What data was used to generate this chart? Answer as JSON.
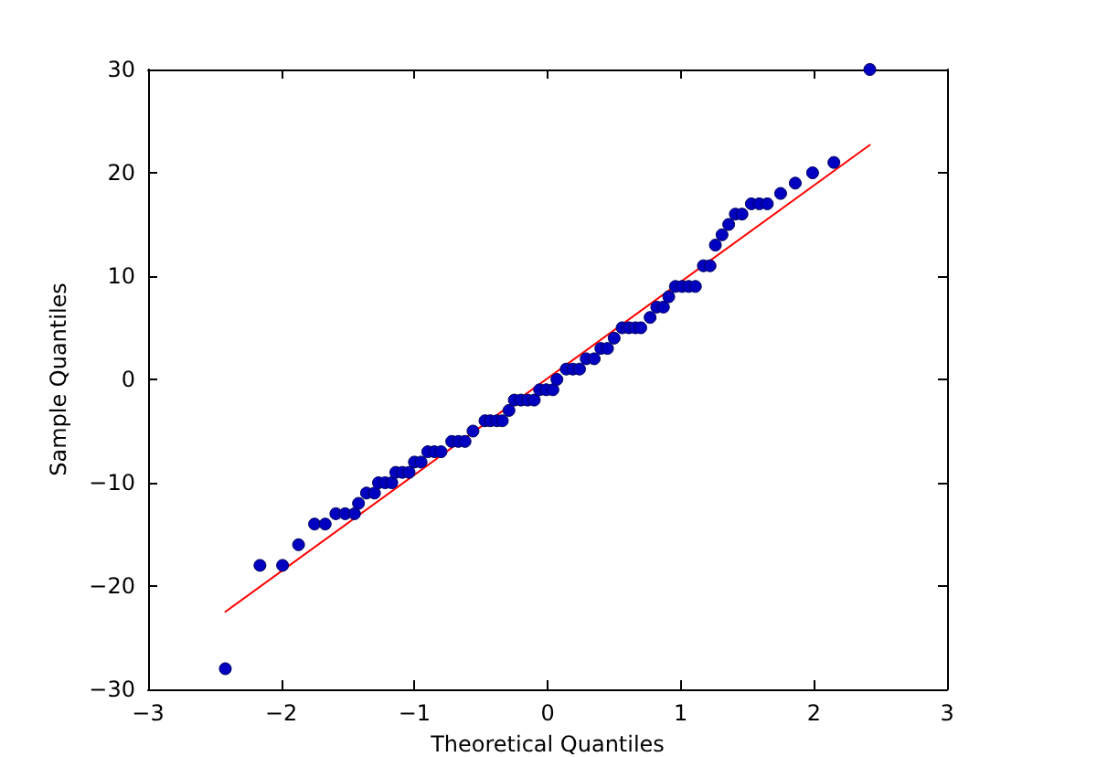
{
  "chart_data": {
    "type": "scatter",
    "xlabel": "Theoretical Quantiles",
    "ylabel": "Sample Quantiles",
    "marker": "circle",
    "xlim": [
      -3,
      3
    ],
    "xticks": [
      {
        "value": -3,
        "label": "−3"
      },
      {
        "value": -2,
        "label": "−2"
      },
      {
        "value": -1,
        "label": "−1"
      },
      0,
      1,
      2,
      3
    ],
    "ylim": [
      -30,
      30
    ],
    "yticks": [
      {
        "value": -30,
        "label": "−30"
      },
      {
        "value": -20,
        "label": "−20"
      },
      {
        "value": -10,
        "label": "−10"
      },
      0,
      10,
      20,
      30
    ],
    "series": [
      {
        "color": "#0000c0",
        "x": [
          -2.42,
          -2.16,
          -1.99,
          -1.87,
          -1.75,
          -1.67,
          -1.59,
          -1.52,
          -1.45,
          -1.42,
          -1.36,
          -1.3,
          -1.27,
          -1.22,
          -1.17,
          -1.14,
          -1.09,
          -1.04,
          -1.0,
          -0.95,
          -0.9,
          -0.85,
          -0.8,
          -0.72,
          -0.67,
          -0.62,
          -0.56,
          -0.47,
          -0.43,
          -0.38,
          -0.34,
          -0.29,
          -0.25,
          -0.2,
          -0.15,
          -0.1,
          -0.06,
          -0.01,
          0.04,
          0.07,
          0.14,
          0.19,
          0.24,
          0.29,
          0.35,
          0.4,
          0.45,
          0.5,
          0.56,
          0.61,
          0.66,
          0.7,
          0.77,
          0.82,
          0.87,
          0.91,
          0.96,
          1.01,
          1.06,
          1.11,
          1.17,
          1.22,
          1.26,
          1.31,
          1.36,
          1.41,
          1.46,
          1.53,
          1.59,
          1.65,
          1.75,
          1.86,
          1.99,
          2.15,
          2.42
        ],
        "values": [
          -28,
          -18,
          -18,
          -16,
          -14,
          -14,
          -13,
          -13,
          -13,
          -12,
          -11,
          -11,
          -10,
          -10,
          -10,
          -9,
          -9,
          -9,
          -8,
          -8,
          -7,
          -7,
          -7,
          -6,
          -6,
          -6,
          -5,
          -4,
          -4,
          -4,
          -4,
          -3,
          -2,
          -2,
          -2,
          -2,
          -1,
          -1,
          -1,
          0,
          1,
          1,
          1,
          2,
          2,
          3,
          3,
          4,
          5,
          5,
          5,
          5,
          6,
          7,
          7,
          8,
          9,
          9,
          9,
          9,
          11,
          11,
          13,
          14,
          15,
          16,
          16,
          17,
          17,
          17,
          18,
          19,
          20,
          21,
          30
        ]
      },
      {
        "type": "line",
        "marker": "none",
        "color": "#ff0000",
        "x": [
          -2.42,
          2.42
        ],
        "values": [
          -22.5,
          22.7
        ]
      }
    ]
  }
}
